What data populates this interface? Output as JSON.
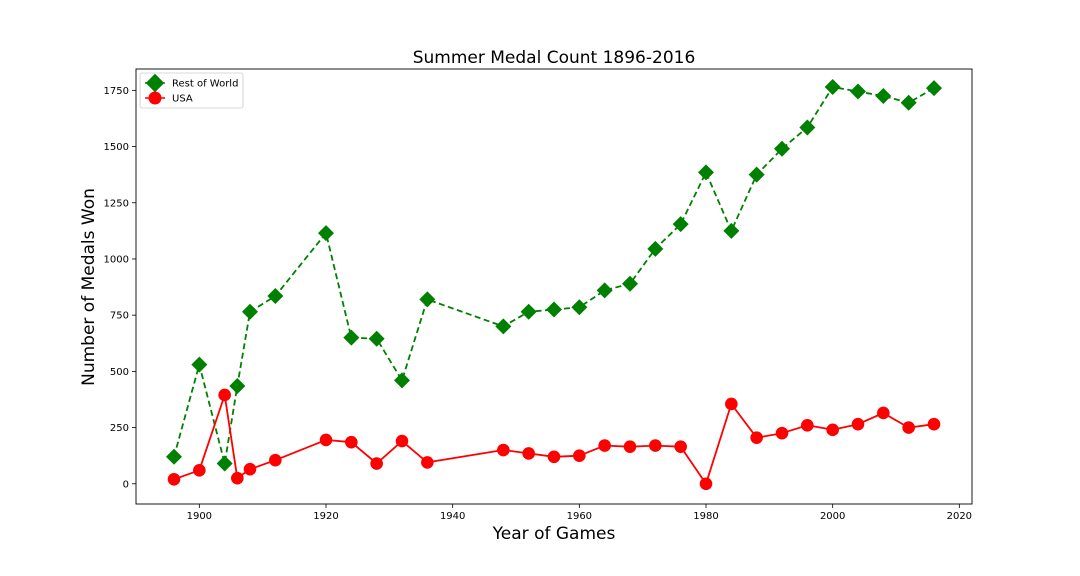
{
  "chart_data": {
    "type": "line",
    "title": "Summer Medal Count 1896-2016",
    "xlabel": "Year of Games",
    "ylabel": "Number of Medals Won",
    "xlim": [
      1890,
      2022
    ],
    "ylim": [
      -90,
      1845
    ],
    "xticks": [
      1900,
      1920,
      1940,
      1960,
      1980,
      2000,
      2020
    ],
    "yticks": [
      0,
      250,
      500,
      750,
      1000,
      1250,
      1500,
      1750
    ],
    "grid": false,
    "legend_position": "top-left",
    "x": [
      1896,
      1900,
      1904,
      1906,
      1908,
      1912,
      1920,
      1924,
      1928,
      1932,
      1936,
      1948,
      1952,
      1956,
      1960,
      1964,
      1968,
      1972,
      1976,
      1980,
      1984,
      1988,
      1992,
      1996,
      2000,
      2004,
      2008,
      2012,
      2016
    ],
    "series": [
      {
        "name": "Rest of World",
        "color": "#008000",
        "line_style": "dashed",
        "marker": "diamond",
        "values": [
          120,
          530,
          90,
          435,
          765,
          835,
          1115,
          650,
          645,
          460,
          820,
          700,
          765,
          775,
          785,
          860,
          890,
          1045,
          1155,
          1385,
          1125,
          1375,
          1490,
          1585,
          1765,
          1745,
          1725,
          1695,
          1760
        ]
      },
      {
        "name": "USA",
        "color": "#ff0000",
        "line_style": "solid",
        "marker": "circle",
        "values": [
          20,
          60,
          395,
          25,
          65,
          105,
          195,
          185,
          90,
          190,
          95,
          150,
          135,
          120,
          125,
          170,
          165,
          170,
          165,
          0,
          355,
          205,
          225,
          260,
          240,
          265,
          315,
          250,
          265
        ]
      }
    ]
  }
}
